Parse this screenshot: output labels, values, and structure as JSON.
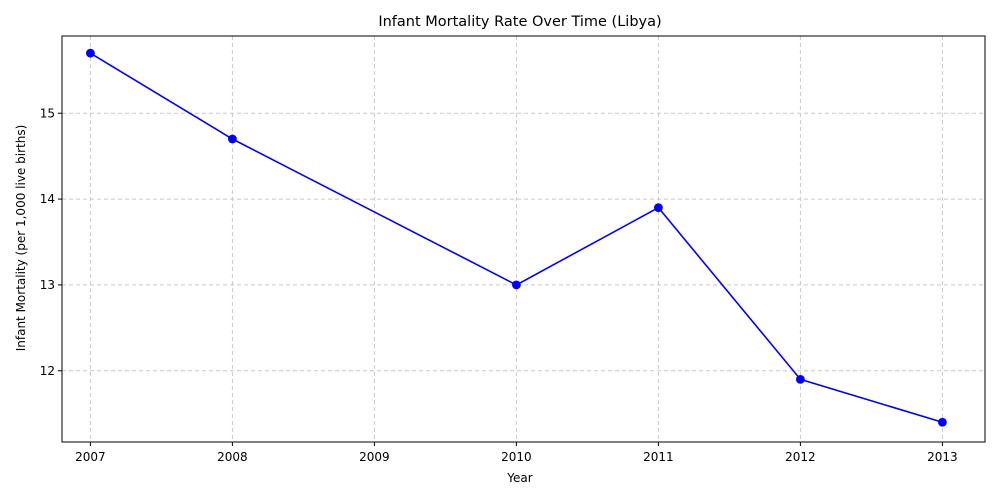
{
  "chart_data": {
    "type": "line",
    "title": "Infant Mortality Rate Over Time (Libya)",
    "xlabel": "Year",
    "ylabel": "Infant Mortality (per 1,000 live births)",
    "x": [
      2007,
      2008,
      2010,
      2011,
      2012,
      2013
    ],
    "xticks": [
      "2007",
      "2008",
      "2009",
      "2010",
      "2011",
      "2012",
      "2013"
    ],
    "yticks": [
      "12",
      "13",
      "14",
      "15"
    ],
    "xlim": [
      2006.8,
      2013.3
    ],
    "ylim": [
      11.17,
      15.9
    ],
    "series": [
      {
        "values": [
          15.7,
          14.7,
          13.0,
          13.9,
          11.9,
          11.4
        ],
        "color": "#0000ff",
        "marker": "circle"
      }
    ],
    "grid": true,
    "grid_style": "dashed",
    "legend": "none"
  }
}
